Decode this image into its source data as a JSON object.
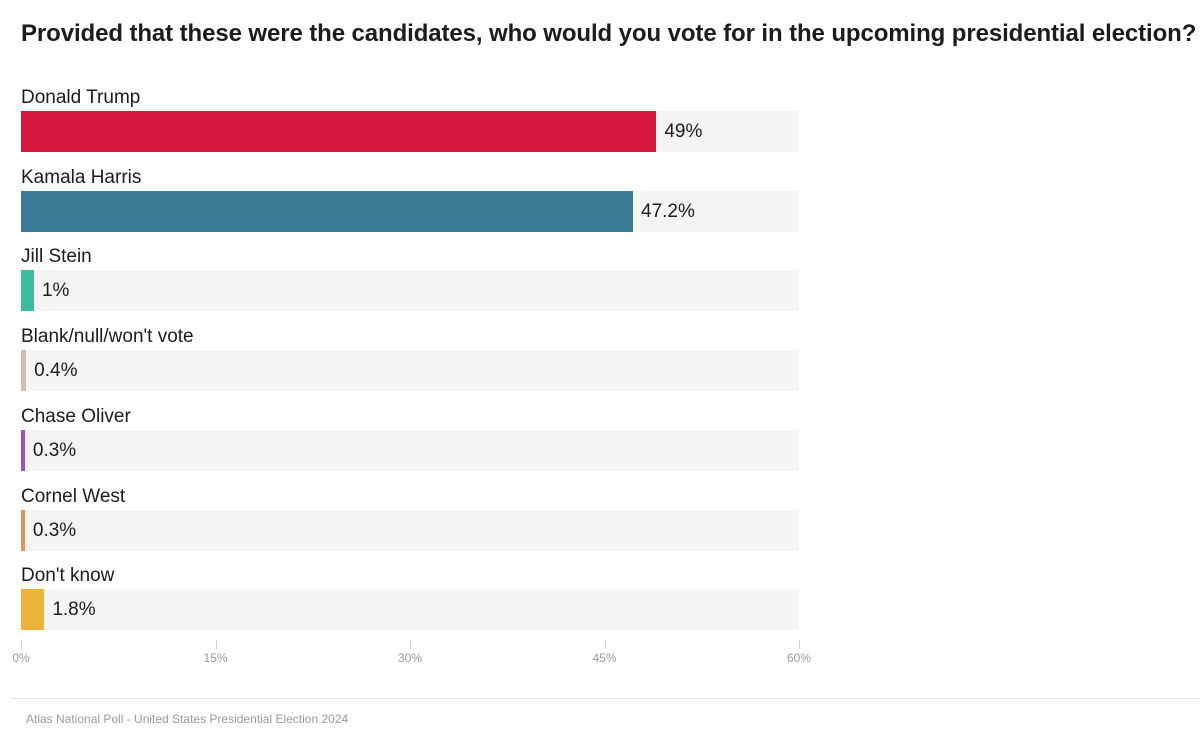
{
  "chart_data": {
    "type": "bar",
    "orientation": "horizontal",
    "title": "Provided that these were the candidates, who would you vote for in the upcoming presidential election?",
    "categories": [
      "Donald Trump",
      "Kamala Harris",
      "Jill Stein",
      "Blank/null/won't vote",
      "Chase Oliver",
      "Cornel West",
      "Don't know"
    ],
    "values": [
      49,
      47.2,
      1,
      0.4,
      0.3,
      0.3,
      1.8
    ],
    "value_labels": [
      "49%",
      "47.2%",
      "1%",
      "0.4%",
      "0.3%",
      "0.3%",
      "1.8%"
    ],
    "colors": [
      "#d8173f",
      "#3d7a96",
      "#3dbd9d",
      "#cbbfb6",
      "#a24fc4",
      "#e0955c",
      "#ebb43d"
    ],
    "xlim": [
      0,
      60
    ],
    "ticks": [
      0,
      15,
      30,
      45,
      60
    ],
    "tick_labels": [
      "0%",
      "15%",
      "30%",
      "45%",
      "60%"
    ],
    "track_color": "#f4f4f2",
    "xlabel": "",
    "ylabel": ""
  },
  "footer": {
    "source": "Atlas National Poll - United States Presidential Election 2024"
  }
}
